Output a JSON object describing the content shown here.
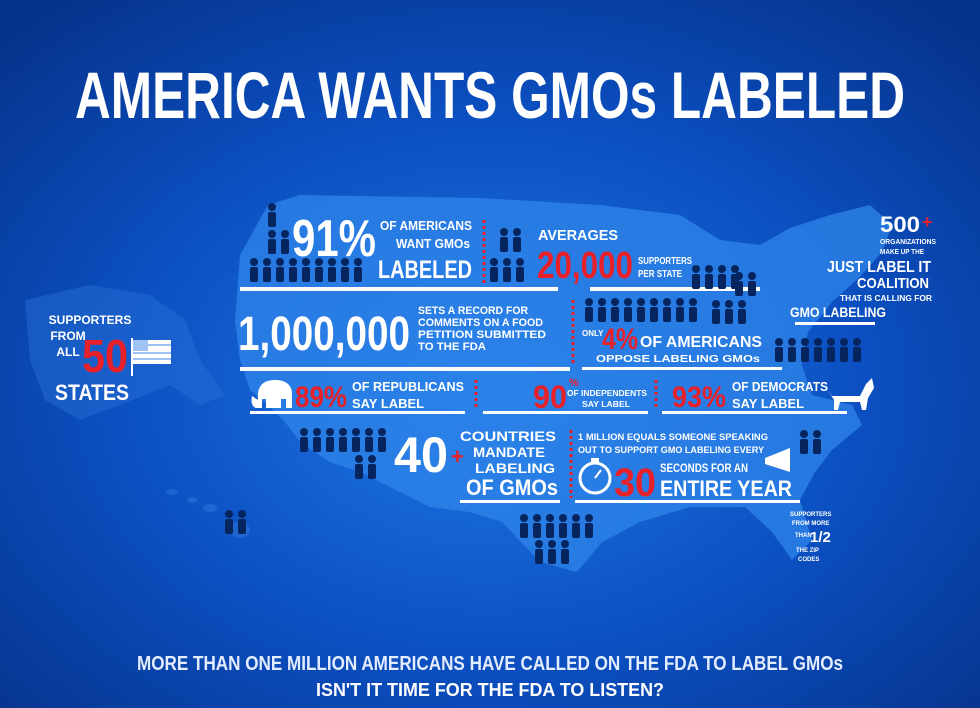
{
  "title": "AMERICA WANTS GMOs LABELED",
  "states": {
    "lines": [
      "SUPPORTERS",
      "FROM",
      "ALL"
    ],
    "number": "50",
    "label": "STATES"
  },
  "americans_want": {
    "percent": "91%",
    "lines": [
      "OF AMERICANS",
      "WANT GMOs"
    ],
    "emphasis": "LABELED"
  },
  "averages": {
    "label": "AVERAGES",
    "number": "20,000",
    "lines": [
      "SUPPORTERS",
      "PER STATE"
    ]
  },
  "coalition": {
    "number": "500",
    "plus": "+",
    "lines": [
      "ORGANIZATIONS",
      "MAKE UP THE"
    ],
    "name": [
      "JUST LABEL IT",
      "COALITION"
    ],
    "calling": "THAT IS CALLING FOR",
    "cause": "GMO LABELING"
  },
  "comments": {
    "number": "1,000,000",
    "lines": [
      "SETS A RECORD FOR",
      "COMMENTS ON A FOOD",
      "PETITION SUBMITTED",
      "TO THE FDA"
    ]
  },
  "oppose": {
    "prefix": "ONLY",
    "percent": "4%",
    "label": "OF AMERICANS",
    "detail": "OPPOSE LABELING GMOs"
  },
  "republicans": {
    "percent": "89%",
    "lines": [
      "OF REPUBLICANS",
      "SAY LABEL"
    ]
  },
  "independents": {
    "number": "90",
    "percent_sign": "%",
    "lines": [
      "OF INDEPENDENTS",
      "SAY LABEL"
    ]
  },
  "democrats": {
    "percent": "93%",
    "lines": [
      "OF DEMOCRATS",
      "SAY LABEL"
    ]
  },
  "countries": {
    "number": "40",
    "plus": "+",
    "lines": [
      "COUNTRIES",
      "MANDATE",
      "LABELING"
    ],
    "emphasis": "OF GMOs"
  },
  "million": {
    "lines": [
      "1 MILLION EQUALS SOMEONE SPEAKING",
      "OUT TO SUPPORT GMO LABELING EVERY"
    ],
    "number": "30",
    "label": "SECONDS FOR AN",
    "emphasis": "ENTIRE YEAR"
  },
  "zip_codes": {
    "lines": [
      "SUPPORTERS",
      "FROM MORE",
      "THAN"
    ],
    "fraction": "1/2",
    "end": [
      "THE ZIP",
      "CODES"
    ]
  },
  "footer": {
    "statement": "MORE THAN ONE MILLION AMERICANS HAVE CALLED ON THE FDA TO LABEL GMOs",
    "question": "ISN'T IT TIME FOR THE FDA TO LISTEN?"
  }
}
